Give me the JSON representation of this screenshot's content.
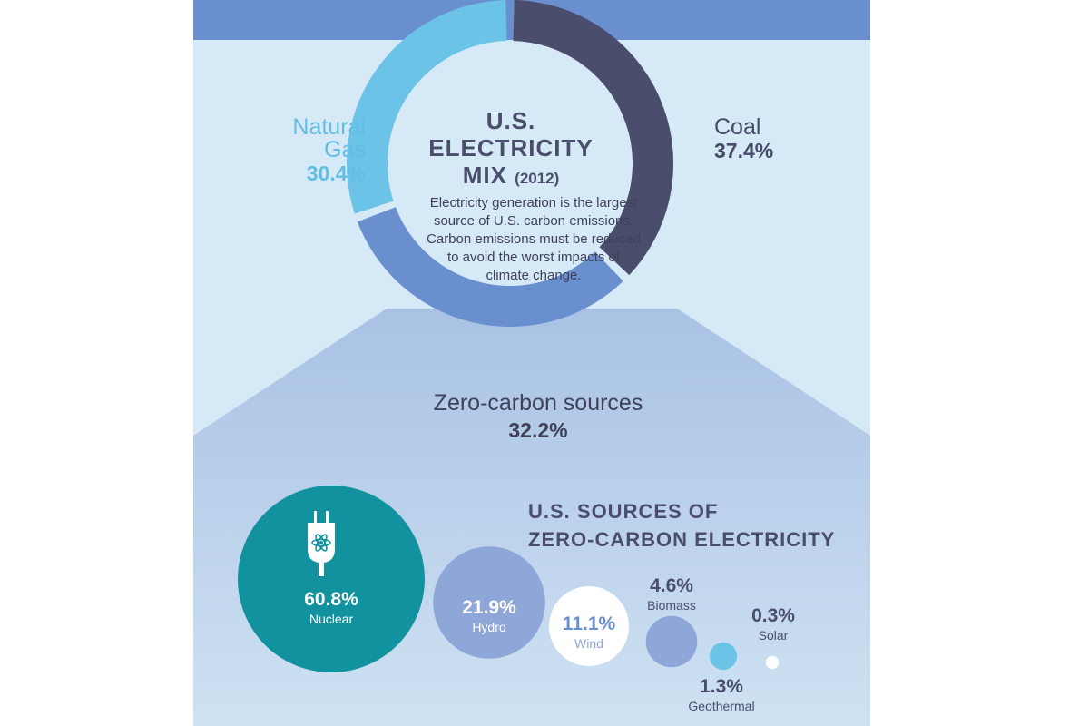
{
  "donut": {
    "title_lines": [
      "U.S.",
      "ELECTRICITY",
      "MIX"
    ],
    "title_year": "(2012)",
    "description_lines": [
      "Electricity generation is the largest",
      "source of U.S. carbon emissions.",
      "Carbon emissions must be reduced",
      "to avoid the worst impacts of",
      "climate change."
    ]
  },
  "zero_carbon": {
    "title_lines": [
      "U.S. SOURCES OF",
      "ZERO-CARBON ELECTRICITY"
    ]
  },
  "icons": {
    "nuclear": "plug-atom-icon"
  },
  "chart_data": [
    {
      "type": "pie",
      "title": "U.S. ELECTRICITY MIX (2012)",
      "donut": true,
      "slices": [
        {
          "name_lines": [
            "Coal"
          ],
          "value": 37.4,
          "label": "37.4%",
          "color": "#4a4d6c"
        },
        {
          "name_lines": [
            "Zero-carbon sources"
          ],
          "value": 32.2,
          "label": "32.2%",
          "color": "#6a8fcf"
        },
        {
          "name_lines": [
            "Natural",
            "Gas"
          ],
          "value": 30.4,
          "label": "30.4%",
          "color": "#6cc3e8"
        }
      ]
    },
    {
      "type": "bubble",
      "title": "U.S. SOURCES OF ZERO-CARBON ELECTRICITY",
      "items": [
        {
          "name": "Nuclear",
          "value": 60.8,
          "label": "60.8%",
          "color": "#12929e"
        },
        {
          "name": "Hydro",
          "value": 21.9,
          "label": "21.9%",
          "color": "#8fa7d8"
        },
        {
          "name": "Wind",
          "value": 11.1,
          "label": "11.1%",
          "color": "#ffffff"
        },
        {
          "name": "Biomass",
          "value": 4.6,
          "label": "4.6%",
          "color": "#8fa7d8"
        },
        {
          "name": "Geothermal",
          "value": 1.3,
          "label": "1.3%",
          "color": "#6cc3e8"
        },
        {
          "name": "Solar",
          "value": 0.3,
          "label": "0.3%",
          "color": "#ffffff"
        }
      ]
    }
  ]
}
